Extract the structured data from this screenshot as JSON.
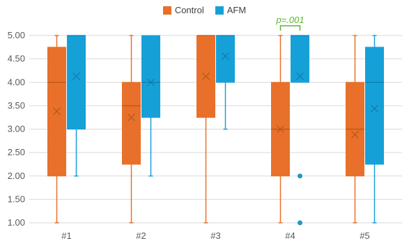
{
  "chart_data": {
    "type": "box",
    "categories": [
      "#1",
      "#2",
      "#3",
      "#4",
      "#5"
    ],
    "ylim": [
      1.0,
      5.0
    ],
    "yticks": [
      "1.00",
      "1.50",
      "2.00",
      "2.50",
      "3.00",
      "3.50",
      "4.00",
      "4.50",
      "5.00"
    ],
    "grid": true,
    "legend_position": "top-center",
    "series": [
      {
        "name": "Control",
        "color": "#E8702A",
        "boxes": [
          {
            "min": 1.0,
            "q1": 2.0,
            "median": 4.0,
            "q3": 4.75,
            "max": 5.0,
            "mean": 3.38,
            "outliers": []
          },
          {
            "min": 1.0,
            "q1": 2.25,
            "median": 3.5,
            "q3": 4.0,
            "max": 5.0,
            "mean": 3.25,
            "outliers": []
          },
          {
            "min": 1.0,
            "q1": 3.25,
            "median": 5.0,
            "q3": 5.0,
            "max": 5.0,
            "mean": 4.13,
            "outliers": []
          },
          {
            "min": 1.0,
            "q1": 2.0,
            "median": 3.0,
            "q3": 4.0,
            "max": 5.0,
            "mean": 3.0,
            "outliers": []
          },
          {
            "min": 1.0,
            "q1": 2.0,
            "median": 3.0,
            "q3": 4.0,
            "max": 5.0,
            "mean": 2.88,
            "outliers": []
          }
        ]
      },
      {
        "name": "AFM",
        "color": "#16A0D8",
        "boxes": [
          {
            "min": 2.0,
            "q1": 3.0,
            "median": 5.0,
            "q3": 5.0,
            "max": 5.0,
            "mean": 4.13,
            "outliers": []
          },
          {
            "min": 2.0,
            "q1": 3.25,
            "median": 4.0,
            "q3": 5.0,
            "max": 5.0,
            "mean": 4.0,
            "outliers": []
          },
          {
            "min": 3.0,
            "q1": 4.0,
            "median": 5.0,
            "q3": 5.0,
            "max": 5.0,
            "mean": 4.56,
            "outliers": []
          },
          {
            "min": 4.0,
            "q1": 4.0,
            "median": 5.0,
            "q3": 5.0,
            "max": 5.0,
            "mean": 4.13,
            "outliers": [
              2.0,
              1.0
            ]
          },
          {
            "min": 1.0,
            "q1": 2.25,
            "median": 4.0,
            "q3": 4.75,
            "max": 5.0,
            "mean": 3.44,
            "outliers": []
          }
        ]
      }
    ],
    "annotations": [
      {
        "text": "p=.001",
        "category": "#4",
        "color": "#5BB52E"
      }
    ]
  }
}
